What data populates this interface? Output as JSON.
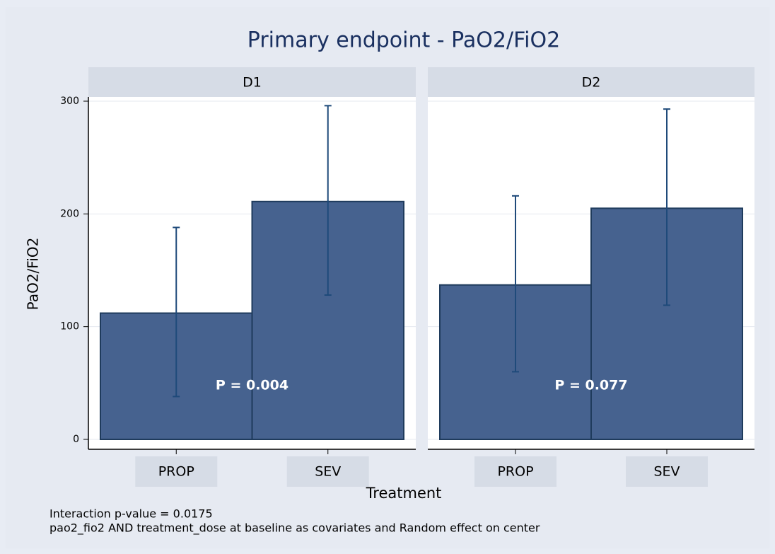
{
  "chart_data": {
    "type": "bar",
    "title": "Primary endpoint - PaO2/FiO2",
    "ylabel": "PaO2/FiO2",
    "xlabel": "Treatment",
    "notes": [
      "Interaction p-value = 0.0175",
      "pao2_fio2 AND treatment_dose at baseline as covariates and Random effect on center"
    ],
    "ylim": [
      0,
      300
    ],
    "yticks": [
      0,
      100,
      200,
      300
    ],
    "grid": true,
    "color": "#46628f",
    "error_color": "#1f4a7a",
    "panels": [
      {
        "title": "D1",
        "categories": [
          "PROP",
          "SEV"
        ],
        "values": [
          112,
          211
        ],
        "lower": [
          38,
          128
        ],
        "upper": [
          188,
          296
        ],
        "annotation": "P = 0.004"
      },
      {
        "title": "D2",
        "categories": [
          "PROP",
          "SEV"
        ],
        "values": [
          137,
          205
        ],
        "lower": [
          60,
          119
        ],
        "upper": [
          216,
          293
        ],
        "annotation": "P = 0.077"
      }
    ]
  }
}
